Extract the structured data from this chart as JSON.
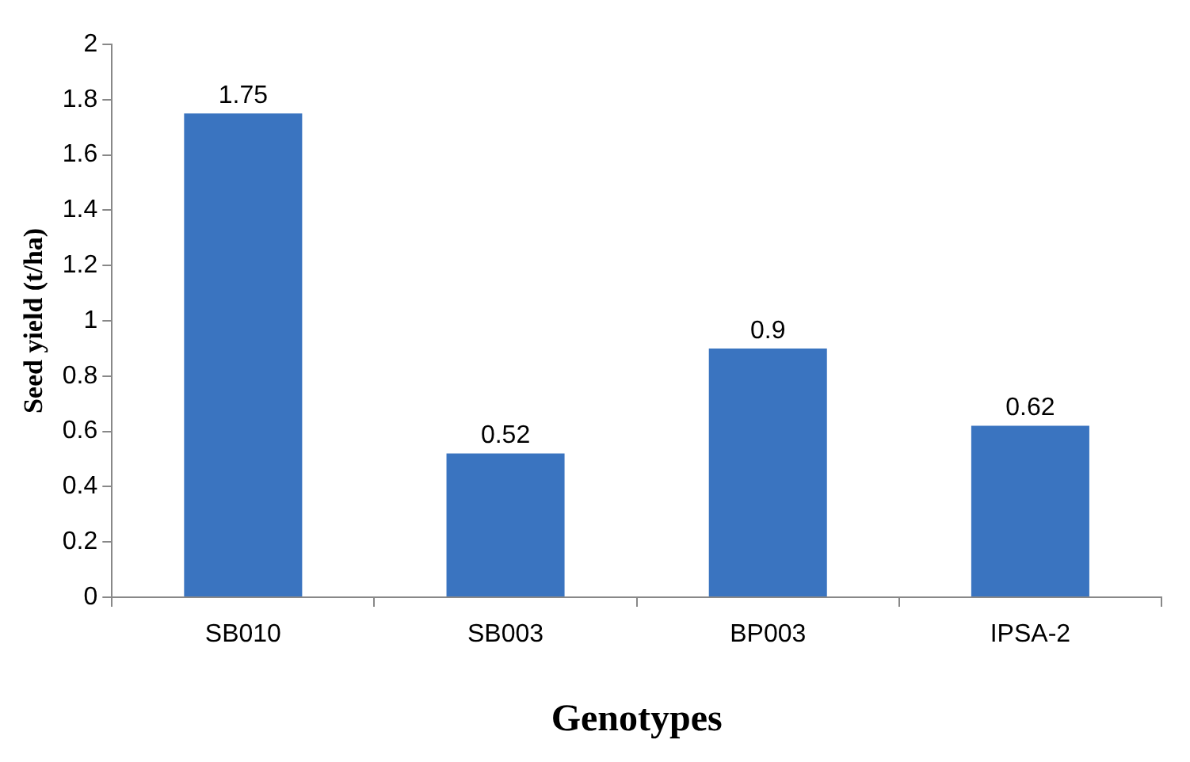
{
  "chart_data": {
    "type": "bar",
    "xlabel": "Genotypes",
    "ylabel": "Seed yield (t/ha)",
    "categories": [
      "SB010",
      "SB003",
      "BP003",
      "IPSA-2"
    ],
    "values": [
      1.75,
      0.52,
      0.9,
      0.62
    ],
    "color": "#3a74c0",
    "ylim": [
      0,
      2
    ],
    "yticks": [
      0,
      0.2,
      0.4,
      0.6,
      0.8,
      1,
      1.2,
      1.4,
      1.6,
      1.8,
      2
    ],
    "grid": false,
    "data_labels": true,
    "legend": false
  }
}
